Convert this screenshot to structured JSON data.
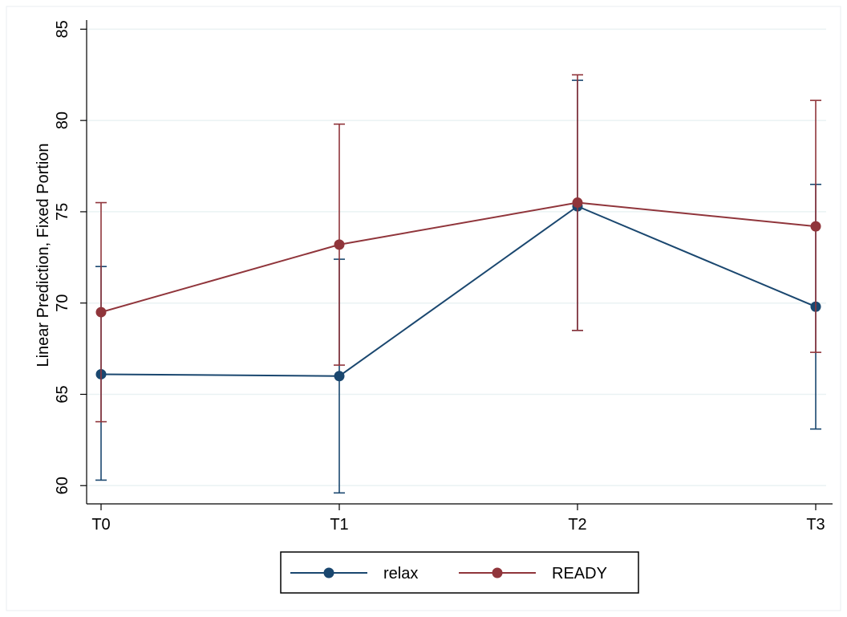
{
  "chart_data": {
    "type": "line",
    "title": "",
    "xlabel": "",
    "ylabel": "Linear Prediction, Fixed Portion",
    "categories": [
      "T0",
      "T1",
      "T2",
      "T3"
    ],
    "ylim": [
      59,
      85.5
    ],
    "yticks": [
      60,
      65,
      70,
      75,
      80,
      85
    ],
    "grid": true,
    "legend_position": "bottom",
    "series": [
      {
        "name": "relax",
        "color": "#1a476f",
        "values": [
          66.1,
          66.0,
          75.3,
          69.8
        ],
        "ci_lower": [
          60.3,
          59.6,
          68.5,
          63.1
        ],
        "ci_upper": [
          72.0,
          72.4,
          82.2,
          76.5
        ]
      },
      {
        "name": "READY",
        "color": "#90353b",
        "values": [
          69.5,
          73.2,
          75.5,
          74.2
        ],
        "ci_lower": [
          63.5,
          66.6,
          68.5,
          67.3
        ],
        "ci_upper": [
          75.5,
          79.8,
          82.5,
          81.1
        ]
      }
    ]
  }
}
